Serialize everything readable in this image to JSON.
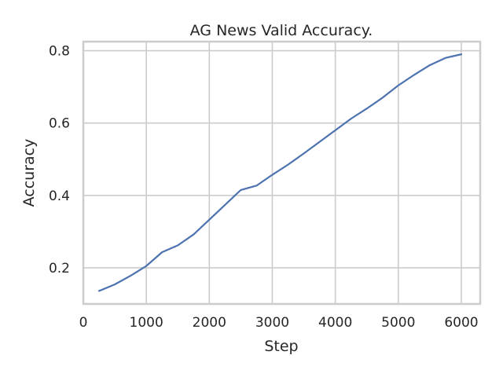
{
  "chart_data": {
    "type": "line",
    "title": "AG News Valid Accuracy.",
    "xlabel": "Step",
    "ylabel": "Accuracy",
    "xlim": [
      0,
      6300
    ],
    "ylim": [
      0.1,
      0.825
    ],
    "xticks": [
      0,
      1000,
      2000,
      3000,
      4000,
      5000,
      6000
    ],
    "xtick_labels": [
      "0",
      "1000",
      "2000",
      "3000",
      "4000",
      "5000",
      "6000"
    ],
    "yticks": [
      0.2,
      0.4,
      0.6,
      0.8
    ],
    "ytick_labels": [
      "0.2",
      "0.4",
      "0.6",
      "0.8"
    ],
    "grid": true,
    "series": [
      {
        "color": "#4c72b0",
        "x": [
          250,
          500,
          750,
          1000,
          1250,
          1500,
          1750,
          2000,
          2250,
          2500,
          2750,
          3000,
          3250,
          3500,
          3750,
          4000,
          4250,
          4500,
          4750,
          5000,
          5250,
          5500,
          5750,
          6000
        ],
        "y": [
          0.136,
          0.154,
          0.178,
          0.205,
          0.243,
          0.262,
          0.292,
          0.333,
          0.374,
          0.415,
          0.427,
          0.457,
          0.485,
          0.516,
          0.548,
          0.58,
          0.612,
          0.64,
          0.67,
          0.704,
          0.733,
          0.76,
          0.78,
          0.79
        ]
      }
    ]
  }
}
